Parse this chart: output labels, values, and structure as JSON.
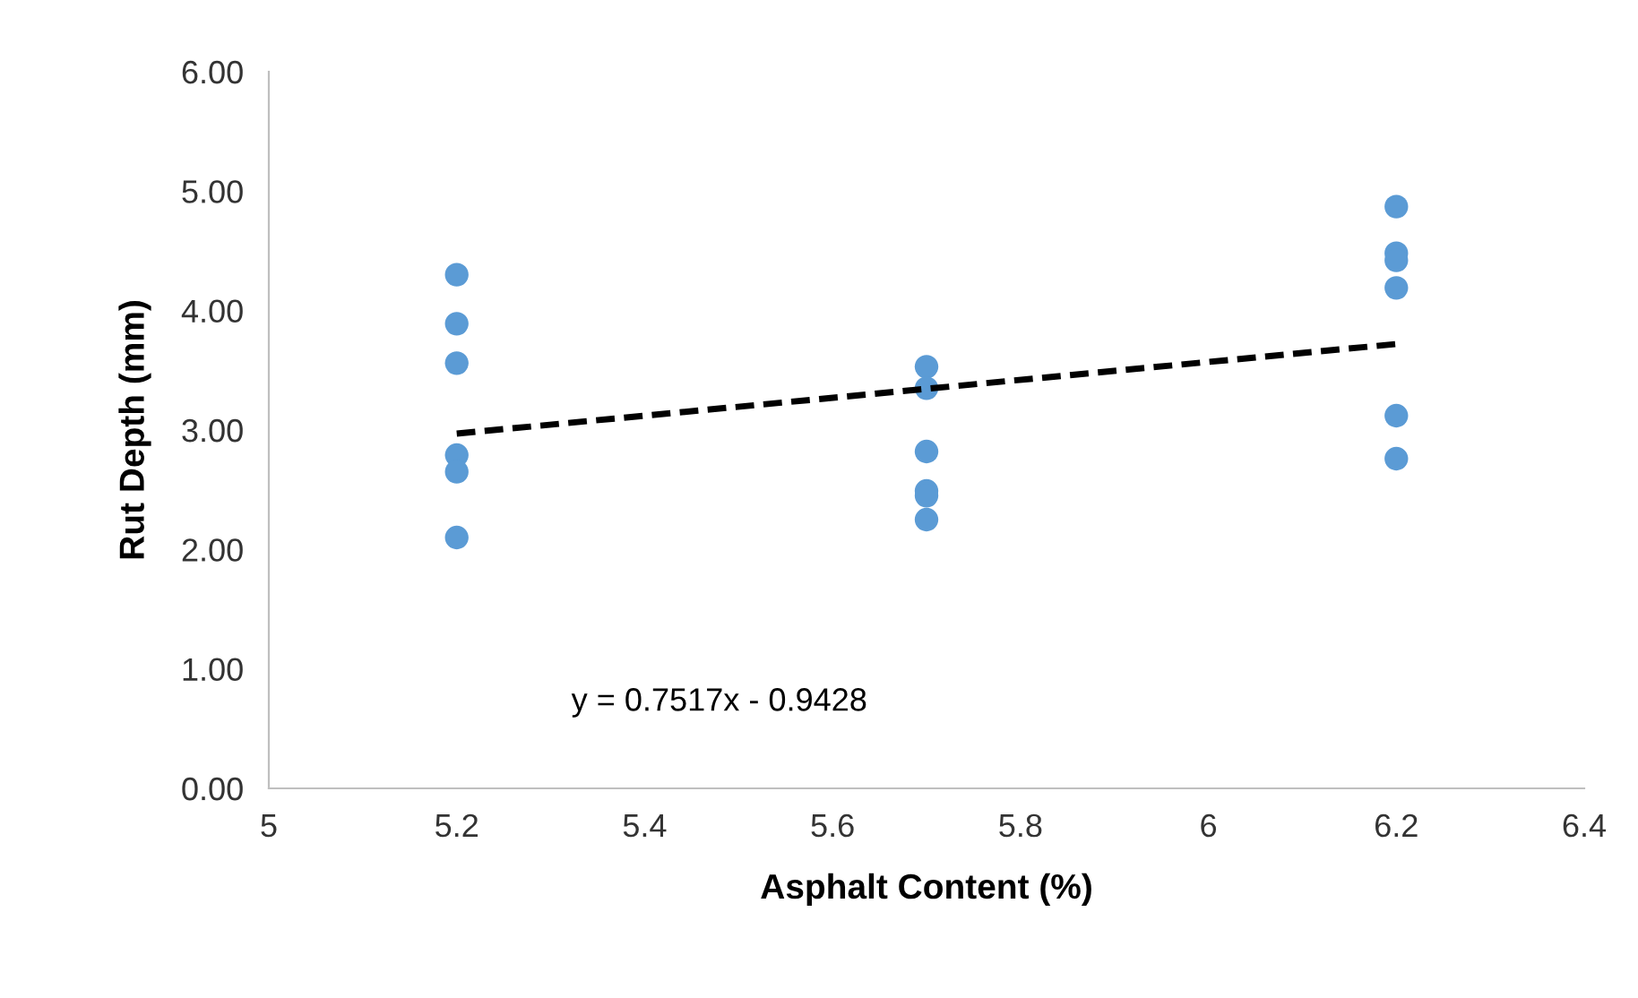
{
  "chart_data": {
    "type": "scatter",
    "xlabel": "Asphalt Content (%)",
    "ylabel": "Rut Depth (mm)",
    "xlim": [
      5,
      6.4
    ],
    "xticks": [
      5,
      5.2,
      5.4,
      5.6,
      5.8,
      6,
      6.2,
      6.4
    ],
    "ylim": [
      0,
      6
    ],
    "yticks": [
      {
        "value": 0,
        "label": "0.00"
      },
      {
        "value": 1,
        "label": "1.00"
      },
      {
        "value": 2,
        "label": "2.00"
      },
      {
        "value": 3,
        "label": "3.00"
      },
      {
        "value": 4,
        "label": "4.00"
      },
      {
        "value": 5,
        "label": "5.00"
      },
      {
        "value": 6,
        "label": "6.00"
      }
    ],
    "grid": false,
    "legend": false,
    "marker": "circle",
    "series": [
      {
        "color": "#5b9bd5",
        "x": [
          5.2,
          5.2,
          5.2,
          5.2,
          5.2,
          5.2,
          5.7,
          5.7,
          5.7,
          5.7,
          5.7,
          5.7,
          6.2,
          6.2,
          6.2,
          6.2,
          6.2,
          6.2
        ],
        "values": [
          4.3,
          3.89,
          3.56,
          2.79,
          2.65,
          2.1,
          3.53,
          3.35,
          2.82,
          2.49,
          2.45,
          2.25,
          4.87,
          4.48,
          4.42,
          4.19,
          3.12,
          2.76
        ]
      },
      {
        "type": "line",
        "color": "#000000",
        "line_style": "dashed",
        "marker": "none",
        "x": [
          5.2,
          6.2
        ],
        "values": [
          2.97,
          3.72
        ]
      }
    ],
    "annotations": [
      "y = 0.7517x - 0.9428"
    ]
  }
}
